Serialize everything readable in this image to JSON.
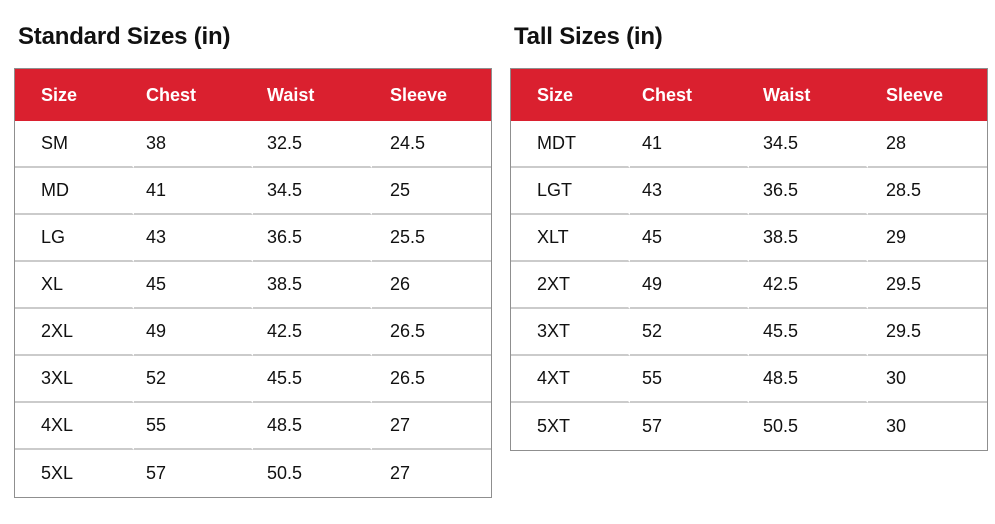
{
  "colors": {
    "header_bg": "#DA202F",
    "header_text": "#ffffff",
    "row_separator": "#cbcbcb",
    "table_border": "#8f8f8f",
    "text": "#111111"
  },
  "tables": [
    {
      "title": "Standard Sizes (in)",
      "columns": [
        "Size",
        "Chest",
        "Waist",
        "Sleeve"
      ],
      "rows": [
        [
          "SM",
          "38",
          "32.5",
          "24.5"
        ],
        [
          "MD",
          "41",
          "34.5",
          "25"
        ],
        [
          "LG",
          "43",
          "36.5",
          "25.5"
        ],
        [
          "XL",
          "45",
          "38.5",
          "26"
        ],
        [
          "2XL",
          "49",
          "42.5",
          "26.5"
        ],
        [
          "3XL",
          "52",
          "45.5",
          "26.5"
        ],
        [
          "4XL",
          "55",
          "48.5",
          "27"
        ],
        [
          "5XL",
          "57",
          "50.5",
          "27"
        ]
      ]
    },
    {
      "title": "Tall Sizes (in)",
      "columns": [
        "Size",
        "Chest",
        "Waist",
        "Sleeve"
      ],
      "rows": [
        [
          "MDT",
          "41",
          "34.5",
          "28"
        ],
        [
          "LGT",
          "43",
          "36.5",
          "28.5"
        ],
        [
          "XLT",
          "45",
          "38.5",
          "29"
        ],
        [
          "2XT",
          "49",
          "42.5",
          "29.5"
        ],
        [
          "3XT",
          "52",
          "45.5",
          "29.5"
        ],
        [
          "4XT",
          "55",
          "48.5",
          "30"
        ],
        [
          "5XT",
          "57",
          "50.5",
          "30"
        ]
      ]
    }
  ]
}
